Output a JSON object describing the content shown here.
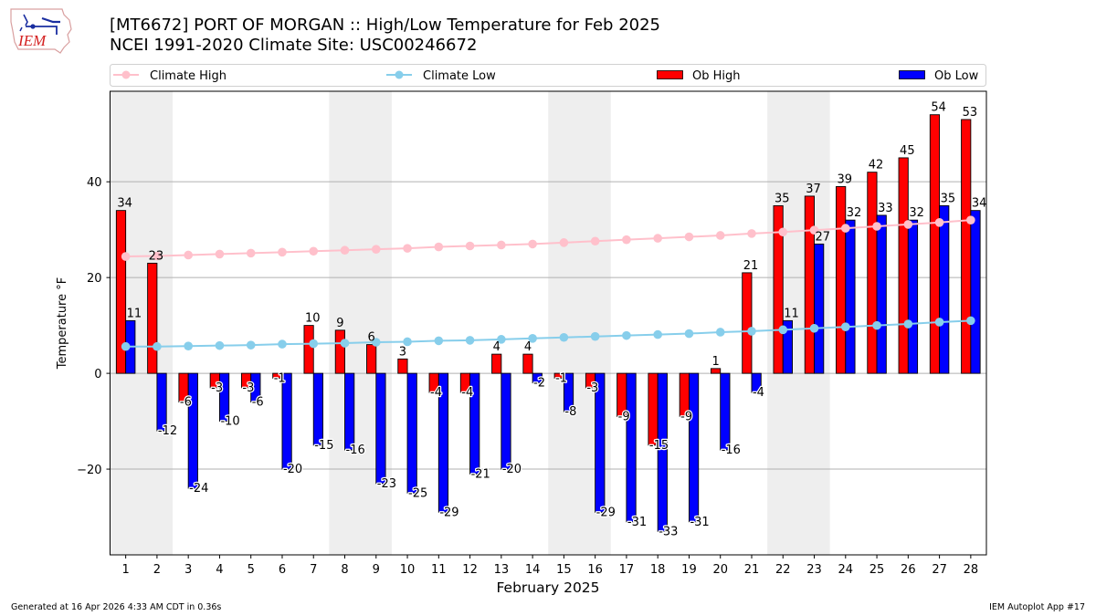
{
  "header": {
    "title_line1": "[MT6672] PORT OF MORGAN :: High/Low Temperature for Feb 2025",
    "title_line2": "NCEI 1991-2020 Climate Site: USC00246672",
    "logo_text": "IEM"
  },
  "footer": {
    "generated": "Generated at 16 Apr 2026 4:33 AM CDT in 0.36s",
    "app": "IEM Autoplot App #17"
  },
  "colors": {
    "ob_high": "#ff0000",
    "ob_low": "#0000ff",
    "climate_high": "#ffc0cb",
    "climate_low": "#87ceeb",
    "weekend_shade": "#eeeeee",
    "grid": "#b0b0b0"
  },
  "chart_data": {
    "type": "bar",
    "title": "[MT6672] PORT OF MORGAN :: High/Low Temperature for Feb 2025",
    "subtitle": "NCEI 1991-2020 Climate Site: USC00246672",
    "xlabel": "February 2025",
    "ylabel": "Temperature °F",
    "x": [
      1,
      2,
      3,
      4,
      5,
      6,
      7,
      8,
      9,
      10,
      11,
      12,
      13,
      14,
      15,
      16,
      17,
      18,
      19,
      20,
      21,
      22,
      23,
      24,
      25,
      26,
      27,
      28
    ],
    "categories": [
      "1",
      "2",
      "3",
      "4",
      "5",
      "6",
      "7",
      "8",
      "9",
      "10",
      "11",
      "12",
      "13",
      "14",
      "15",
      "16",
      "17",
      "18",
      "19",
      "20",
      "21",
      "22",
      "23",
      "24",
      "25",
      "26",
      "27",
      "28"
    ],
    "xlim": [
      0.5,
      28.5
    ],
    "ylim": [
      -37.9,
      58.9
    ],
    "yticks": [
      -20,
      0,
      20,
      40
    ],
    "ytick_labels": [
      "−20",
      "0",
      "20",
      "40"
    ],
    "grid": "y",
    "legend_placement": "top",
    "weekend_spans": [
      [
        0.5,
        2.5
      ],
      [
        7.5,
        9.5
      ],
      [
        14.5,
        16.5
      ],
      [
        21.5,
        23.5
      ]
    ],
    "series": [
      {
        "name": "Ob High",
        "kind": "bar",
        "values": [
          34,
          23,
          -6,
          -3,
          -3,
          -1,
          10,
          9,
          6,
          3,
          -4,
          -4,
          4,
          4,
          -1,
          -3,
          -9,
          -15,
          -9,
          1,
          21,
          35,
          37,
          39,
          42,
          45,
          54,
          53
        ]
      },
      {
        "name": "Ob Low",
        "kind": "bar",
        "values": [
          11,
          -12,
          -24,
          -10,
          -6,
          -20,
          -15,
          -16,
          -23,
          -25,
          -29,
          -21,
          -20,
          -2,
          -8,
          -29,
          -31,
          -33,
          -31,
          -16,
          -4,
          11,
          27,
          32,
          33,
          32,
          35,
          34
        ]
      },
      {
        "name": "Climate High",
        "kind": "line",
        "values": [
          24.4,
          24.5,
          24.7,
          24.9,
          25.1,
          25.3,
          25.5,
          25.7,
          25.9,
          26.1,
          26.4,
          26.6,
          26.8,
          27.0,
          27.3,
          27.6,
          27.9,
          28.2,
          28.5,
          28.8,
          29.2,
          29.5,
          29.9,
          30.3,
          30.7,
          31.1,
          31.5,
          32.0
        ]
      },
      {
        "name": "Climate Low",
        "kind": "line",
        "values": [
          5.6,
          5.6,
          5.7,
          5.8,
          5.9,
          6.1,
          6.2,
          6.3,
          6.5,
          6.6,
          6.8,
          6.9,
          7.1,
          7.3,
          7.5,
          7.7,
          7.9,
          8.1,
          8.3,
          8.6,
          8.8,
          9.1,
          9.4,
          9.7,
          10.0,
          10.3,
          10.7,
          11.0
        ]
      }
    ],
    "legend": [
      "Climate High",
      "Climate Low",
      "Ob High",
      "Ob Low"
    ]
  }
}
